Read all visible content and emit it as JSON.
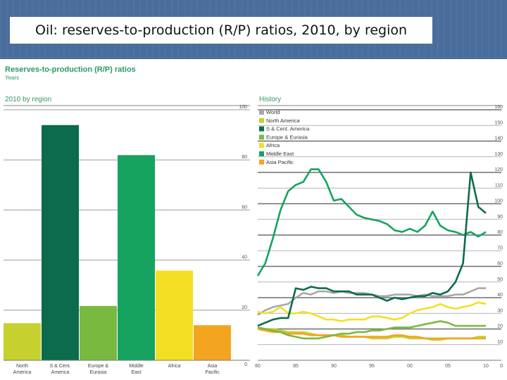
{
  "slide": {
    "title": "Oil: reserves-to-production (R/P) ratios, 2010, by region"
  },
  "figure": {
    "title": "Reserves-to-production (R/P) ratios",
    "unit": "Years"
  },
  "colors": {
    "header_bg": "#4a6d9b",
    "accent_text": "#2a9a63",
    "World": "#a8a8a8",
    "North America": "#c6d12f",
    "S & Cent. America": "#0b6b4c",
    "Europe & Eurasia": "#7ab93f",
    "Africa": "#f4df23",
    "Middle East": "#16a35f",
    "Asia Pacific": "#f3a421"
  },
  "chart_data": [
    {
      "type": "bar",
      "title": "2010 by region",
      "categories": [
        "North\nAmerica",
        "S & Cent.\nAmerica",
        "Europe &\nEurasia",
        "Middle\nEast",
        "Africa",
        "Asia\nPacific"
      ],
      "values": [
        14.8,
        93.9,
        21.7,
        81.9,
        35.8,
        14.0
      ],
      "ylim": [
        0,
        100
      ],
      "yticks": [
        0,
        20,
        40,
        60,
        80,
        100
      ],
      "grid": true
    },
    {
      "type": "line",
      "title": "History",
      "x": [
        1980,
        1981,
        1982,
        1983,
        1984,
        1985,
        1986,
        1987,
        1988,
        1989,
        1990,
        1991,
        1992,
        1993,
        1994,
        1995,
        1996,
        1997,
        1998,
        1999,
        2000,
        2001,
        2002,
        2003,
        2004,
        2005,
        2006,
        2007,
        2008,
        2009,
        2010
      ],
      "xticks": [
        1980,
        1985,
        1990,
        1995,
        2000,
        2005,
        2010
      ],
      "xtick_labels": [
        "80",
        "85",
        "90",
        "95",
        "00",
        "05",
        "10"
      ],
      "ylim": [
        0,
        160
      ],
      "yticks": [
        10,
        20,
        30,
        40,
        50,
        60,
        70,
        80,
        90,
        100,
        110,
        120,
        130,
        140,
        150,
        160
      ],
      "grid": true,
      "legend_position": "top-left",
      "series": [
        {
          "name": "World",
          "values": [
            29,
            32,
            34,
            35,
            36,
            40,
            43,
            42,
            44,
            44,
            43,
            44,
            43,
            43,
            43,
            42,
            41,
            41,
            42,
            42,
            42,
            41,
            42,
            41,
            41,
            41,
            42,
            42,
            44,
            46,
            46
          ]
        },
        {
          "name": "North America",
          "values": [
            21,
            20,
            20,
            19,
            18,
            18,
            18,
            17,
            16,
            16,
            16,
            16,
            15,
            15,
            15,
            14,
            14,
            14,
            15,
            15,
            14,
            14,
            14,
            13,
            13,
            14,
            14,
            14,
            14,
            15,
            15
          ]
        },
        {
          "name": "S & Cent. America",
          "values": [
            22,
            24,
            26,
            27,
            27,
            46,
            45,
            47,
            46,
            46,
            44,
            44,
            44,
            42,
            42,
            42,
            40,
            38,
            40,
            39,
            40,
            41,
            41,
            43,
            42,
            44,
            50,
            62,
            120,
            98,
            94
          ]
        },
        {
          "name": "Europe & Eurasia",
          "values": [
            21,
            20,
            19,
            18,
            16,
            15,
            14,
            14,
            14,
            15,
            16,
            17,
            17,
            18,
            18,
            19,
            19,
            20,
            21,
            21,
            21,
            22,
            23,
            24,
            25,
            24,
            22,
            22,
            22,
            22,
            22
          ]
        },
        {
          "name": "Africa",
          "values": [
            31,
            30,
            31,
            34,
            30,
            30,
            31,
            30,
            28,
            26,
            26,
            25,
            26,
            26,
            26,
            28,
            28,
            27,
            26,
            27,
            30,
            32,
            33,
            34,
            36,
            34,
            33,
            34,
            35,
            37,
            36
          ]
        },
        {
          "name": "Middle East",
          "values": [
            54,
            62,
            78,
            96,
            108,
            112,
            114,
            122,
            122,
            114,
            102,
            103,
            98,
            93,
            91,
            90,
            89,
            87,
            83,
            82,
            84,
            82,
            86,
            95,
            86,
            83,
            82,
            80,
            82,
            79,
            82
          ]
        },
        {
          "name": "Asia Pacific",
          "values": [
            20,
            19,
            18,
            18,
            17,
            17,
            17,
            16,
            16,
            16,
            16,
            15,
            15,
            15,
            15,
            15,
            15,
            15,
            16,
            16,
            15,
            15,
            14,
            14,
            14,
            14,
            14,
            14,
            14,
            14,
            14
          ]
        }
      ]
    }
  ]
}
